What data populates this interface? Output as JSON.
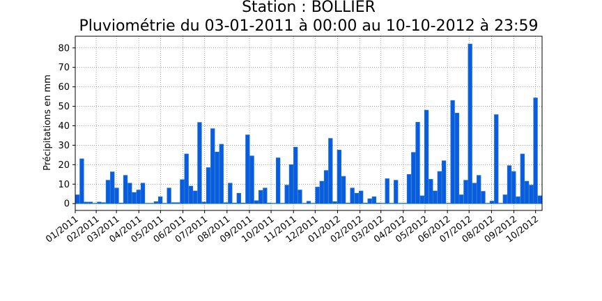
{
  "chart_data": {
    "type": "bar",
    "title_lines": [
      "Station : BOLLIER",
      "Pluviométrie du 03-01-2011 à 00:00 au 10-10-2012 à 23:59"
    ],
    "xlabel": "",
    "ylabel": "Précipitations en mm",
    "ylim": [
      -3.5,
      86
    ],
    "yticks": [
      0,
      10,
      20,
      30,
      40,
      50,
      60,
      70,
      80
    ],
    "grid": true,
    "bar_color": "#0a5ae8",
    "bar_edge_color": "#1f77b4",
    "xlim": [
      "2011-01-03",
      "2012-10-10"
    ],
    "xticks": [
      {
        "date": "2011-01-01",
        "label": "01/2011"
      },
      {
        "date": "2011-02-01",
        "label": "02/2011"
      },
      {
        "date": "2011-03-01",
        "label": "03/2011"
      },
      {
        "date": "2011-04-01",
        "label": "04/2011"
      },
      {
        "date": "2011-05-01",
        "label": "05/2011"
      },
      {
        "date": "2011-06-01",
        "label": "06/2011"
      },
      {
        "date": "2011-07-01",
        "label": "07/2011"
      },
      {
        "date": "2011-08-01",
        "label": "08/2011"
      },
      {
        "date": "2011-09-01",
        "label": "09/2011"
      },
      {
        "date": "2011-10-01",
        "label": "10/2011"
      },
      {
        "date": "2011-11-01",
        "label": "11/2011"
      },
      {
        "date": "2011-12-01",
        "label": "12/2011"
      },
      {
        "date": "2012-01-01",
        "label": "01/2012"
      },
      {
        "date": "2012-02-01",
        "label": "02/2012"
      },
      {
        "date": "2012-03-01",
        "label": "03/2012"
      },
      {
        "date": "2012-04-01",
        "label": "04/2012"
      },
      {
        "date": "2012-05-01",
        "label": "05/2012"
      },
      {
        "date": "2012-06-01",
        "label": "06/2012"
      },
      {
        "date": "2012-07-01",
        "label": "07/2012"
      },
      {
        "date": "2012-08-01",
        "label": "08/2012"
      },
      {
        "date": "2012-09-01",
        "label": "09/2012"
      },
      {
        "date": "2012-10-01",
        "label": "10/2012"
      }
    ],
    "values": [
      4.5,
      23,
      0.8,
      0.8,
      0.2,
      0.8,
      0.5,
      12,
      16.3,
      8,
      0.3,
      14.5,
      10.5,
      5.7,
      7,
      10.5,
      0.2,
      0.2,
      1,
      3.5,
      0.2,
      8,
      0.5,
      0.5,
      12.3,
      25.5,
      9,
      6.5,
      41.7,
      0.8,
      18.5,
      38.5,
      26.5,
      30.5,
      0.5,
      10.5,
      0.3,
      5.3,
      0.3,
      35.3,
      24.5,
      1.5,
      6.8,
      8,
      0.3,
      0.2,
      23.5,
      0.2,
      9.5,
      20,
      29,
      7,
      0.2,
      1.2,
      0.2,
      8.5,
      11.5,
      17,
      33.5,
      1,
      27.5,
      14,
      0.3,
      8,
      5.3,
      6.5,
      0.3,
      2.5,
      3.5,
      0.3,
      0.2,
      12.8,
      0.2,
      12,
      0.2,
      0.2,
      15,
      26.3,
      41.8,
      4,
      48,
      12.5,
      6.5,
      16.5,
      22,
      0.2,
      53,
      46.5,
      4.5,
      12,
      82,
      10.5,
      14.5,
      6.3,
      0.2,
      1.3,
      45.7,
      0.2,
      4.5,
      19.5,
      16.5,
      3.5,
      25.5,
      11.5,
      9.5,
      54.3,
      4
    ]
  }
}
